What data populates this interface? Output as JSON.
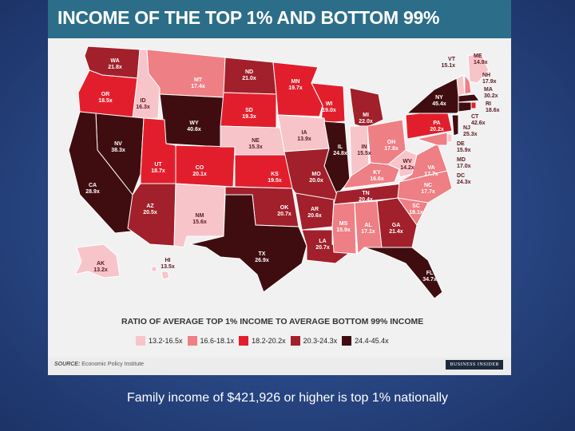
{
  "title": "INCOME OF THE TOP 1% AND BOTTOM 99%",
  "legend": {
    "title": "RATIO OF AVERAGE TOP 1% INCOME TO AVERAGE BOTTOM 99% INCOME",
    "items": [
      {
        "label": "13.2-16.5x",
        "color": "#f7c5c9"
      },
      {
        "label": "16.6-18.1x",
        "color": "#ee7f84"
      },
      {
        "label": "18.2-20.2x",
        "color": "#e31e2c"
      },
      {
        "label": "20.3-24.3x",
        "color": "#a1202b"
      },
      {
        "label": "24.4-45.4x",
        "color": "#3f0d10"
      }
    ]
  },
  "source": {
    "prefix": "SOURCE:",
    "text": "Economic Policy Institute"
  },
  "brand": "BUSINESS INSIDER",
  "caption": "Family income of $421,926 or higher is top 1% nationally",
  "states": [
    {
      "abbr": "WA",
      "value": "21.8x"
    },
    {
      "abbr": "OR",
      "value": "18.5x"
    },
    {
      "abbr": "ID",
      "value": "16.3x"
    },
    {
      "abbr": "MT",
      "value": "17.4x"
    },
    {
      "abbr": "WY",
      "value": "40.6x"
    },
    {
      "abbr": "ND",
      "value": "21.0x"
    },
    {
      "abbr": "SD",
      "value": "19.3x"
    },
    {
      "abbr": "MN",
      "value": "19.7x"
    },
    {
      "abbr": "WI",
      "value": "19.0x"
    },
    {
      "abbr": "MI",
      "value": "22.0x"
    },
    {
      "abbr": "NV",
      "value": "38.3x"
    },
    {
      "abbr": "CA",
      "value": "28.9x"
    },
    {
      "abbr": "UT",
      "value": "18.7x"
    },
    {
      "abbr": "CO",
      "value": "20.1x"
    },
    {
      "abbr": "NE",
      "value": "15.3x"
    },
    {
      "abbr": "IA",
      "value": "13.9x"
    },
    {
      "abbr": "IL",
      "value": "24.8x"
    },
    {
      "abbr": "IN",
      "value": "15.5x"
    },
    {
      "abbr": "OH",
      "value": "17.8x"
    },
    {
      "abbr": "PA",
      "value": "20.2x"
    },
    {
      "abbr": "NY",
      "value": "45.4x"
    },
    {
      "abbr": "KS",
      "value": "19.5x"
    },
    {
      "abbr": "MO",
      "value": "20.0x"
    },
    {
      "abbr": "KY",
      "value": "16.6x"
    },
    {
      "abbr": "WV",
      "value": "14.2x"
    },
    {
      "abbr": "VA",
      "value": "17.7x"
    },
    {
      "abbr": "AZ",
      "value": "20.5x"
    },
    {
      "abbr": "NM",
      "value": "15.6x"
    },
    {
      "abbr": "OK",
      "value": "20.7x"
    },
    {
      "abbr": "AR",
      "value": "20.6x"
    },
    {
      "abbr": "TN",
      "value": "20.4x"
    },
    {
      "abbr": "NC",
      "value": "17.7x"
    },
    {
      "abbr": "SC",
      "value": "18.1x"
    },
    {
      "abbr": "MS",
      "value": "15.9x"
    },
    {
      "abbr": "AL",
      "value": "17.1x"
    },
    {
      "abbr": "GA",
      "value": "21.4x"
    },
    {
      "abbr": "TX",
      "value": "26.9x"
    },
    {
      "abbr": "LA",
      "value": "20.7x"
    },
    {
      "abbr": "FL",
      "value": "34.7x"
    },
    {
      "abbr": "AK",
      "value": "13.2x"
    },
    {
      "abbr": "HI",
      "value": "13.5x"
    },
    {
      "abbr": "VT",
      "value": "15.1x"
    },
    {
      "abbr": "ME",
      "value": "14.9x"
    },
    {
      "abbr": "NH",
      "value": "17.9x"
    },
    {
      "abbr": "MA",
      "value": "30.2x"
    },
    {
      "abbr": "RI",
      "value": "18.6x"
    },
    {
      "abbr": "CT",
      "value": "42.6x"
    },
    {
      "abbr": "NJ",
      "value": "25.3x"
    },
    {
      "abbr": "DE",
      "value": "15.9x"
    },
    {
      "abbr": "MD",
      "value": "17.0x"
    },
    {
      "abbr": "DC",
      "value": "24.3x"
    }
  ]
}
